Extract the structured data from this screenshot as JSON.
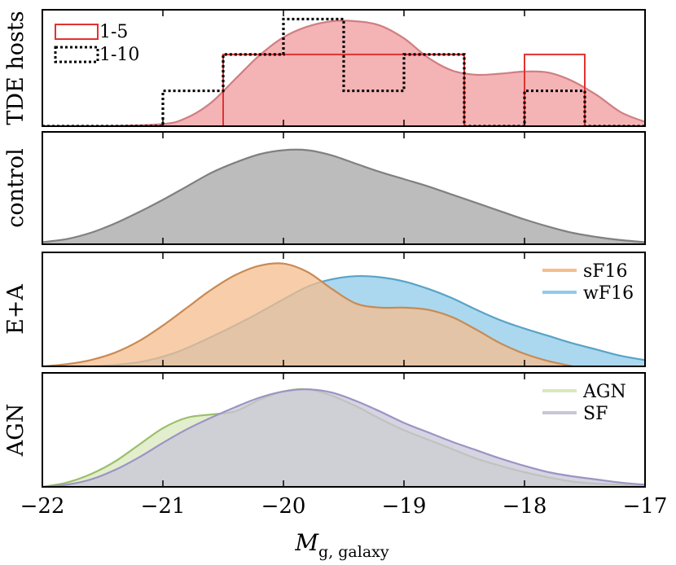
{
  "chart_data": {
    "type": "area",
    "x_axis": {
      "label_main": "M",
      "label_subscript": "g, galaxy",
      "xlim": [
        -22,
        -17
      ],
      "ticks": [
        -22,
        -21,
        -20,
        -19,
        -18,
        -17
      ],
      "tick_labels": [
        "−22",
        "−21",
        "−20",
        "−19",
        "−18",
        "−17"
      ]
    },
    "panels": [
      {
        "ylabel": "TDE hosts",
        "ymax": 1.0,
        "kde": [
          {
            "name": "TDE hosts KDE",
            "fill": "#f4b4b6",
            "stroke": "#cf7e82",
            "x": [
              -22,
              -21.5,
              -21,
              -20.8,
              -20.6,
              -20.4,
              -20.2,
              -20,
              -19.8,
              -19.6,
              -19.4,
              -19.2,
              -19,
              -18.8,
              -18.6,
              -18.4,
              -18.2,
              -18,
              -17.8,
              -17.6,
              -17.4,
              -17.2,
              -17
            ],
            "y": [
              0.0,
              0.0,
              0.02,
              0.08,
              0.22,
              0.44,
              0.66,
              0.83,
              0.93,
              0.98,
              0.98,
              0.94,
              0.82,
              0.64,
              0.52,
              0.48,
              0.49,
              0.51,
              0.5,
              0.42,
              0.29,
              0.13,
              0.04
            ]
          }
        ],
        "histograms": [
          {
            "name": "1-5",
            "color": "#e0332f",
            "dash": "solid",
            "edges": [
              -22,
              -21.5,
              -21,
              -20.5,
              -20,
              -19.5,
              -19,
              -18.5,
              -18,
              -17.5,
              -17
            ],
            "heights": [
              0,
              0,
              0,
              0.67,
              0.67,
              0.67,
              0.67,
              0,
              0.67,
              0,
              0
            ]
          },
          {
            "name": "1-10",
            "color": "#000000",
            "dash": "dotted",
            "edges": [
              -22,
              -21.5,
              -21,
              -20.5,
              -20,
              -19.5,
              -19,
              -18.5,
              -18,
              -17.5,
              -17
            ],
            "heights": [
              0,
              0,
              0.33,
              0.67,
              1.0,
              0.33,
              0.67,
              0,
              0.33,
              0,
              0
            ]
          }
        ],
        "legend": [
          {
            "label": "1-5",
            "style": "solid-box",
            "color": "#e0332f"
          },
          {
            "label": "1-10",
            "style": "dotted-box",
            "color": "#000000"
          }
        ]
      },
      {
        "ylabel": "control",
        "ymax": 1.0,
        "kde": [
          {
            "name": "control",
            "fill": "#bcbcbc",
            "stroke": "#808080",
            "x": [
              -22,
              -21.8,
              -21.6,
              -21.4,
              -21.2,
              -21,
              -20.8,
              -20.6,
              -20.4,
              -20.2,
              -20,
              -19.8,
              -19.6,
              -19.4,
              -19.2,
              -19,
              -18.8,
              -18.6,
              -18.4,
              -18.2,
              -18,
              -17.8,
              -17.6,
              -17.4,
              -17.2,
              -17
            ],
            "y": [
              0.02,
              0.05,
              0.11,
              0.2,
              0.31,
              0.43,
              0.56,
              0.69,
              0.79,
              0.87,
              0.91,
              0.91,
              0.86,
              0.78,
              0.7,
              0.63,
              0.56,
              0.48,
              0.4,
              0.32,
              0.24,
              0.17,
              0.11,
              0.07,
              0.04,
              0.02
            ]
          }
        ]
      },
      {
        "ylabel": "E+A",
        "ymax": 1.0,
        "kde": [
          {
            "name": "wF16",
            "fill": "#8fcbe8",
            "stroke": "#5aa3c7",
            "x": [
              -22,
              -21.6,
              -21.2,
              -20.9,
              -20.6,
              -20.3,
              -20,
              -19.8,
              -19.6,
              -19.4,
              -19.2,
              -19,
              -18.8,
              -18.6,
              -18.4,
              -18.2,
              -18,
              -17.8,
              -17.6,
              -17.4,
              -17.2,
              -17
            ],
            "y": [
              0.0,
              0.0,
              0.04,
              0.13,
              0.28,
              0.45,
              0.64,
              0.76,
              0.83,
              0.86,
              0.85,
              0.81,
              0.74,
              0.65,
              0.54,
              0.44,
              0.36,
              0.29,
              0.22,
              0.16,
              0.1,
              0.06
            ]
          },
          {
            "name": "sF16",
            "fill": "#f6be8d",
            "stroke": "#c98a54",
            "x": [
              -22,
              -21.8,
              -21.6,
              -21.4,
              -21.2,
              -21,
              -20.8,
              -20.6,
              -20.4,
              -20.2,
              -20,
              -19.8,
              -19.6,
              -19.4,
              -19.2,
              -19,
              -18.8,
              -18.6,
              -18.4,
              -18.2,
              -18,
              -17.8,
              -17.6
            ],
            "y": [
              0.0,
              0.02,
              0.06,
              0.13,
              0.24,
              0.39,
              0.56,
              0.73,
              0.87,
              0.96,
              0.98,
              0.9,
              0.74,
              0.6,
              0.56,
              0.56,
              0.54,
              0.47,
              0.35,
              0.22,
              0.12,
              0.05,
              0.0
            ]
          }
        ],
        "legend": [
          {
            "label": "sF16",
            "color": "#f6be8d"
          },
          {
            "label": "wF16",
            "color": "#8fcbe8"
          }
        ]
      },
      {
        "ylabel": "AGN",
        "ymax": 1.0,
        "kde": [
          {
            "name": "AGN",
            "fill": "#d8e8bc",
            "stroke": "#9bbf6a",
            "x": [
              -22,
              -21.8,
              -21.6,
              -21.4,
              -21.2,
              -21,
              -20.8,
              -20.6,
              -20.4,
              -20.2,
              -20,
              -19.8,
              -19.6,
              -19.4,
              -19.2,
              -19,
              -18.8,
              -18.6,
              -18.4,
              -18.2,
              -18,
              -17.8,
              -17.6,
              -17.4,
              -17.2,
              -17
            ],
            "y": [
              0.0,
              0.04,
              0.12,
              0.24,
              0.4,
              0.56,
              0.66,
              0.69,
              0.72,
              0.83,
              0.91,
              0.93,
              0.87,
              0.77,
              0.65,
              0.54,
              0.45,
              0.36,
              0.27,
              0.2,
              0.14,
              0.09,
              0.05,
              0.03,
              0.02,
              0.0
            ]
          },
          {
            "name": "SF",
            "fill": "#c8c6d8",
            "stroke": "#9b94c3",
            "x": [
              -22,
              -21.8,
              -21.6,
              -21.4,
              -21.2,
              -21,
              -20.8,
              -20.6,
              -20.4,
              -20.2,
              -20,
              -19.8,
              -19.6,
              -19.4,
              -19.2,
              -19,
              -18.8,
              -18.6,
              -18.4,
              -18.2,
              -18,
              -17.8,
              -17.6,
              -17.4,
              -17.2,
              -17
            ],
            "y": [
              0.0,
              0.02,
              0.07,
              0.16,
              0.28,
              0.42,
              0.55,
              0.66,
              0.76,
              0.85,
              0.91,
              0.93,
              0.9,
              0.82,
              0.72,
              0.61,
              0.52,
              0.43,
              0.35,
              0.27,
              0.2,
              0.14,
              0.1,
              0.07,
              0.04,
              0.02
            ]
          }
        ],
        "legend": [
          {
            "label": "AGN",
            "color": "#d8e8bc"
          },
          {
            "label": "SF",
            "color": "#c8c6d8"
          }
        ]
      }
    ]
  }
}
